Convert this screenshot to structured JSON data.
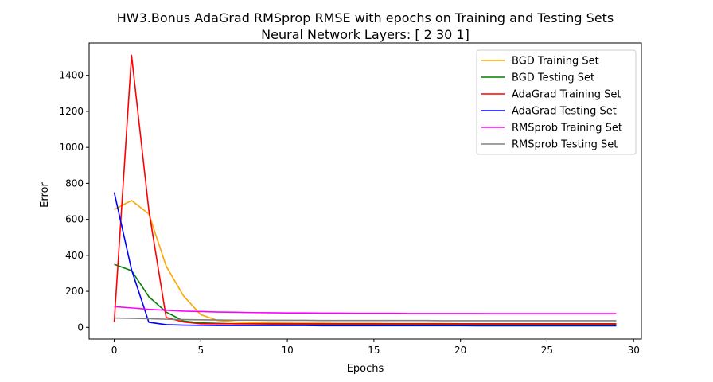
{
  "chart_data": {
    "type": "line",
    "title": "HW3.Bonus AdaGrad RMSprop RMSE with epochs on Training and Testing Sets",
    "subtitle": "Neural Network Layers: [ 2 30  1]",
    "xlabel": "Epochs",
    "ylabel": "Error",
    "xlim": [
      -1.45,
      30.45
    ],
    "ylim": [
      -65,
      1580
    ],
    "xticks": [
      0,
      5,
      10,
      15,
      20,
      25,
      30
    ],
    "yticks": [
      0,
      200,
      400,
      600,
      800,
      1000,
      1200,
      1400
    ],
    "grid": false,
    "legend": "top-right",
    "x": [
      0,
      1,
      2,
      3,
      4,
      5,
      6,
      7,
      8,
      9,
      10,
      11,
      12,
      13,
      14,
      15,
      16,
      17,
      18,
      19,
      20,
      21,
      22,
      23,
      24,
      25,
      26,
      27,
      28,
      29
    ],
    "series": [
      {
        "name": "BGD Training Set",
        "color": "#ffa500",
        "values": [
          655,
          705,
          630,
          340,
          175,
          70,
          38,
          30,
          27,
          25,
          24,
          23,
          23,
          22,
          22,
          22,
          21,
          21,
          21,
          21,
          20,
          20,
          20,
          20,
          20,
          20,
          20,
          20,
          20,
          20
        ]
      },
      {
        "name": "BGD Testing Set",
        "color": "#008000",
        "values": [
          350,
          315,
          170,
          85,
          35,
          25,
          22,
          20,
          19,
          18,
          18,
          18,
          17,
          17,
          17,
          17,
          17,
          17,
          16,
          16,
          16,
          16,
          16,
          16,
          16,
          16,
          16,
          16,
          16,
          16
        ]
      },
      {
        "name": "AdaGrad Training Set",
        "color": "#ff0000",
        "values": [
          30,
          1512,
          650,
          55,
          30,
          20,
          20,
          20,
          20,
          20,
          20,
          20,
          20,
          20,
          20,
          20,
          20,
          20,
          20,
          20,
          20,
          20,
          20,
          20,
          20,
          20,
          20,
          20,
          20,
          20
        ]
      },
      {
        "name": "AdaGrad Testing Set",
        "color": "#0000ff",
        "values": [
          750,
          320,
          28,
          15,
          12,
          11,
          10,
          10,
          10,
          10,
          10,
          10,
          9,
          9,
          9,
          9,
          9,
          9,
          9,
          9,
          9,
          8,
          8,
          8,
          8,
          8,
          8,
          8,
          8,
          8
        ]
      },
      {
        "name": "RMSprob Training Set",
        "color": "#ff00ff",
        "values": [
          115,
          108,
          100,
          95,
          90,
          88,
          85,
          84,
          82,
          81,
          80,
          80,
          79,
          79,
          78,
          78,
          78,
          77,
          77,
          77,
          77,
          77,
          76,
          76,
          76,
          76,
          76,
          76,
          76,
          76
        ]
      },
      {
        "name": "RMSprob Testing Set",
        "color": "#808080",
        "values": [
          52,
          50,
          48,
          45,
          43,
          42,
          41,
          40,
          40,
          39,
          39,
          39,
          38,
          38,
          38,
          38,
          38,
          38,
          38,
          37,
          37,
          37,
          37,
          37,
          37,
          37,
          37,
          37,
          37,
          37
        ]
      }
    ]
  }
}
